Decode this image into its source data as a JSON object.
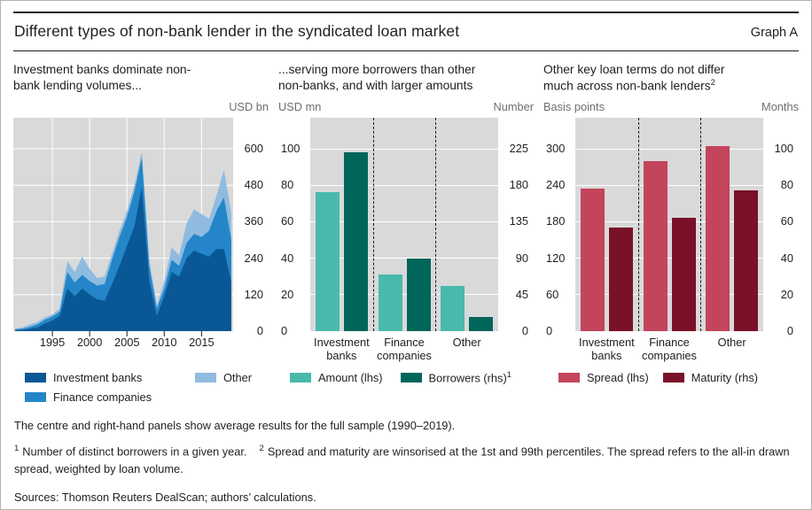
{
  "header": {
    "title": "Different types of non-bank lender in the syndicated loan market",
    "graph_label": "Graph A"
  },
  "colors": {
    "plot_bg": "#d9d9d9",
    "grid": "#ffffff",
    "tick": "#1a1a1a",
    "investment_banks": "#0a5796",
    "finance_companies": "#2486c8",
    "other": "#8fbbe0",
    "amount": "#49b9ab",
    "borrowers": "#00665a",
    "spread": "#c3455b",
    "maturity": "#7a1128",
    "muted_text": "#6d6e71"
  },
  "panel1": {
    "title_line1": "Investment banks dominate non-",
    "title_line2": "bank lending volumes...",
    "unit_right": "USD bn",
    "legend": [
      {
        "label": "Investment banks",
        "color_path": "colors.investment_banks"
      },
      {
        "label": "Finance companies",
        "color_path": "colors.finance_companies"
      },
      {
        "label": "Other",
        "color_path": "colors.other"
      }
    ]
  },
  "panel2": {
    "title_line1": "...serving more borrowers than other",
    "title_line2": "non-banks, and with larger amounts",
    "unit_left": "USD mn",
    "unit_right": "Number",
    "legend": [
      {
        "label": "Amount (lhs)",
        "sup": "",
        "color_path": "colors.amount"
      },
      {
        "label": "Borrowers (rhs)",
        "sup": "1",
        "color_path": "colors.borrowers"
      }
    ]
  },
  "panel3": {
    "title_line1": "Other key loan terms do not differ",
    "title_line2": "much across non-bank lenders",
    "title_sup": "2",
    "unit_left": "Basis points",
    "unit_right": "Months",
    "legend": [
      {
        "label": "Spread (lhs)",
        "sup": "",
        "color_path": "colors.spread"
      },
      {
        "label": "Maturity (rhs)",
        "sup": "",
        "color_path": "colors.maturity"
      }
    ]
  },
  "note": "The centre and right-hand panels show average results for the full sample (1990–2019).",
  "footnotes": [
    {
      "marker": "1",
      "text": "Number of distinct borrowers in a given year."
    },
    {
      "marker": "2",
      "text": "Spread and maturity are winsorised at the 1st and 99th percentiles. The spread refers to the all-in drawn spread, weighted by loan volume."
    }
  ],
  "sources": "Sources: Thomson Reuters DealScan; authors’ calculations.",
  "chart_data": [
    {
      "type": "area",
      "title": "Investment banks dominate non-bank lending volumes...",
      "ylabel": "USD bn",
      "stacked": true,
      "ylim": [
        0,
        700
      ],
      "yticks": [
        0,
        120,
        240,
        360,
        480,
        600
      ],
      "xticks": [
        1995,
        2000,
        2005,
        2010,
        2015
      ],
      "x": [
        1990,
        1991,
        1992,
        1993,
        1994,
        1995,
        1996,
        1997,
        1998,
        1999,
        2000,
        2001,
        2002,
        2003,
        2004,
        2005,
        2006,
        2007,
        2008,
        2009,
        2010,
        2011,
        2012,
        2013,
        2014,
        2015,
        2016,
        2017,
        2018,
        2019
      ],
      "series": [
        {
          "name": "Investment banks",
          "color": "#0a5796",
          "values": [
            3,
            4,
            8,
            12,
            25,
            35,
            50,
            140,
            115,
            140,
            120,
            105,
            100,
            155,
            215,
            280,
            345,
            475,
            165,
            50,
            115,
            195,
            180,
            240,
            265,
            255,
            245,
            270,
            270,
            160
          ]
        },
        {
          "name": "Finance companies",
          "color": "#2486c8",
          "values": [
            3,
            4,
            6,
            10,
            13,
            13,
            15,
            55,
            45,
            45,
            45,
            45,
            55,
            80,
            95,
            95,
            115,
            95,
            50,
            25,
            25,
            40,
            35,
            50,
            55,
            55,
            85,
            125,
            170,
            140
          ]
        },
        {
          "name": "Other",
          "color": "#8fbbe0",
          "values": [
            2,
            4,
            8,
            8,
            7,
            7,
            10,
            35,
            35,
            60,
            40,
            25,
            25,
            20,
            20,
            20,
            20,
            20,
            20,
            10,
            25,
            40,
            35,
            65,
            80,
            75,
            40,
            50,
            90,
            90
          ]
        }
      ]
    },
    {
      "type": "bar",
      "title": "...serving more borrowers than other non-banks, and with larger amounts",
      "categories": [
        "Investment banks",
        "Finance companies",
        "Other"
      ],
      "category_lines": [
        [
          "Investment",
          "banks"
        ],
        [
          "Finance",
          "companies"
        ],
        [
          "Other"
        ]
      ],
      "left_axis": {
        "label": "USD mn",
        "ticks": [
          0,
          20,
          40,
          60,
          80,
          100
        ],
        "plot_max": 117
      },
      "right_axis": {
        "label": "Number",
        "ticks": [
          0,
          45,
          90,
          135,
          180,
          225
        ],
        "plot_max": 263.25
      },
      "series": [
        {
          "name": "Amount (lhs)",
          "axis": "left",
          "color": "#49b9ab",
          "values": [
            76,
            31,
            25
          ]
        },
        {
          "name": "Borrowers (rhs)",
          "axis": "right",
          "color": "#00665a",
          "values": [
            221,
            90,
            18
          ]
        }
      ]
    },
    {
      "type": "bar",
      "title": "Other key loan terms do not differ much across non-bank lenders",
      "categories": [
        "Investment banks",
        "Finance companies",
        "Other"
      ],
      "category_lines": [
        [
          "Investment",
          "banks"
        ],
        [
          "Finance",
          "companies"
        ],
        [
          "Other"
        ]
      ],
      "left_axis": {
        "label": "Basis points",
        "ticks": [
          0,
          60,
          120,
          180,
          240,
          300
        ],
        "plot_max": 351
      },
      "right_axis": {
        "label": "Months",
        "ticks": [
          0,
          20,
          40,
          60,
          80,
          100
        ],
        "plot_max": 117
      },
      "series": [
        {
          "name": "Spread (lhs)",
          "axis": "left",
          "color": "#c3455b",
          "values": [
            234,
            279,
            305
          ]
        },
        {
          "name": "Maturity (rhs)",
          "axis": "right",
          "color": "#7a1128",
          "values": [
            57,
            62,
            77
          ]
        }
      ]
    }
  ]
}
